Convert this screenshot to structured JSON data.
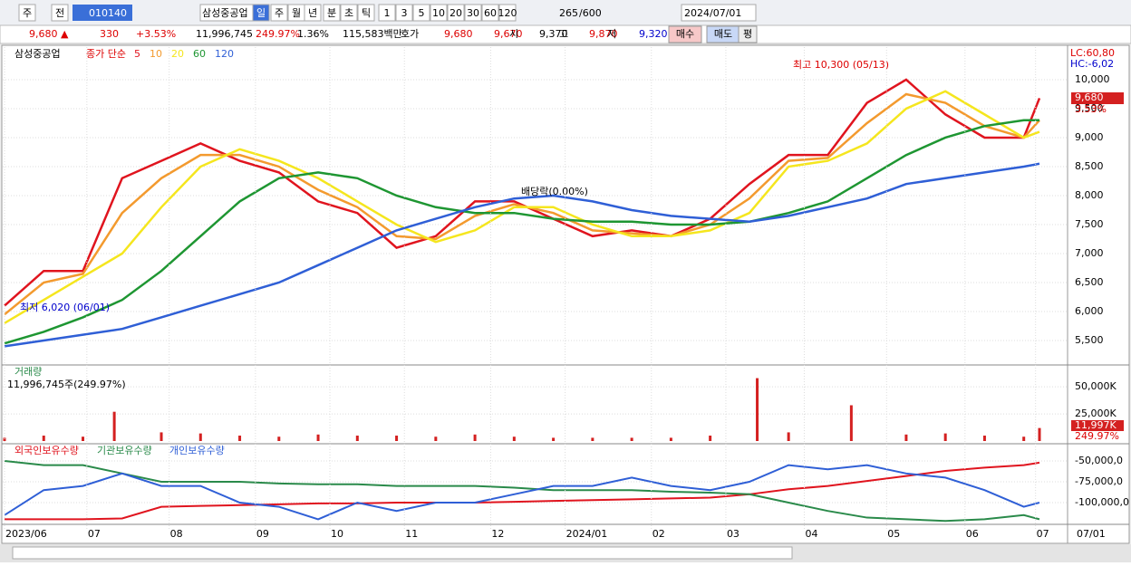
{
  "toolbar": {
    "items": [
      "주",
      "전",
      "010140",
      "삼성중공업",
      "일",
      "주",
      "월",
      "년",
      "분",
      "초",
      "틱",
      "1",
      "3",
      "5",
      "10",
      "20",
      "30",
      "60",
      "120"
    ],
    "count": "265",
    "total": "/600",
    "date": "2024/07/01"
  },
  "quote": {
    "items": [
      "9,680 ▲",
      "330",
      "+3.53%",
      "11,996,745",
      "249.97%",
      "1.36%",
      "115,583백만",
      "호가",
      "9,680",
      "9,670",
      "시",
      "9,370",
      "고",
      "9,870",
      "저",
      "9,320"
    ],
    "buttons": [
      "매수",
      "매도",
      "평"
    ]
  },
  "chart_data": [
    {
      "type": "line",
      "title": "삼성중공업",
      "legend": "종가 단순",
      "lc": "LC:60,80",
      "hc": "HC:-6,02",
      "last_price": "9,680",
      "last_change": "3.53%",
      "x": [
        0,
        10,
        20,
        30,
        40,
        50,
        60,
        70,
        80,
        90,
        100,
        110,
        120,
        130,
        140,
        150,
        160,
        170,
        180,
        190,
        200,
        210,
        220,
        230,
        240,
        250,
        260,
        264
      ],
      "series": [
        {
          "name": "5",
          "color": "#e0141e",
          "values": [
            6100,
            6700,
            6700,
            8300,
            8600,
            8900,
            8600,
            8400,
            7900,
            7700,
            7100,
            7300,
            7900,
            7900,
            7600,
            7300,
            7400,
            7300,
            7600,
            8200,
            8700,
            8700,
            9600,
            10000,
            9400,
            9000,
            9000,
            9680
          ]
        },
        {
          "name": "10",
          "color": "#f39a2e",
          "values": [
            5950,
            6500,
            6650,
            7700,
            8300,
            8700,
            8700,
            8500,
            8100,
            7800,
            7300,
            7250,
            7650,
            7850,
            7700,
            7400,
            7350,
            7300,
            7500,
            7950,
            8600,
            8650,
            9250,
            9750,
            9600,
            9200,
            9000,
            9300
          ]
        },
        {
          "name": "20",
          "color": "#f5e61e",
          "values": [
            5800,
            6200,
            6600,
            7000,
            7800,
            8500,
            8800,
            8600,
            8300,
            7900,
            7500,
            7200,
            7400,
            7800,
            7800,
            7500,
            7300,
            7300,
            7400,
            7700,
            8500,
            8600,
            8900,
            9500,
            9800,
            9400,
            9000,
            9100
          ]
        },
        {
          "name": "60",
          "color": "#1e9632",
          "values": [
            5450,
            5650,
            5900,
            6200,
            6700,
            7300,
            7900,
            8300,
            8400,
            8300,
            8000,
            7800,
            7700,
            7700,
            7600,
            7550,
            7550,
            7500,
            7500,
            7550,
            7700,
            7900,
            8300,
            8700,
            9000,
            9200,
            9300,
            9300
          ]
        },
        {
          "name": "120",
          "color": "#2f5fd6",
          "values": [
            5400,
            5500,
            5600,
            5700,
            5900,
            6100,
            6300,
            6500,
            6800,
            7100,
            7400,
            7600,
            7800,
            7950,
            8000,
            7900,
            7750,
            7650,
            7600,
            7550,
            7650,
            7800,
            7950,
            8200,
            8300,
            8400,
            8500,
            8550
          ]
        }
      ],
      "ylim": [
        5094,
        10562
      ],
      "yticks": [
        {
          "value": 5500,
          "label": "5,500"
        },
        {
          "value": 6000,
          "label": "6,000"
        },
        {
          "value": 6500,
          "label": "6,500"
        },
        {
          "value": 7000,
          "label": "7,000"
        },
        {
          "value": 7500,
          "label": "7,500"
        },
        {
          "value": 8000,
          "label": "8,000"
        },
        {
          "value": 8500,
          "label": "8,500"
        },
        {
          "value": 9000,
          "label": "9,000"
        },
        {
          "value": 9500,
          "label": "9,500"
        },
        {
          "value": 10000,
          "label": "10,000"
        }
      ],
      "annotations": [
        "최고 10,300 (05/13)",
        "최저 6,020 (06/01)",
        "배당락(0.00%)"
      ]
    },
    {
      "type": "bar",
      "title": "거래량",
      "subtitle": "11,996,745주(249.97%)",
      "last_volume": "11,997K",
      "last_ratio": "249.97%",
      "x": [
        0,
        10,
        20,
        28,
        40,
        50,
        60,
        70,
        80,
        90,
        100,
        110,
        120,
        130,
        140,
        150,
        160,
        170,
        180,
        192,
        200,
        216,
        230,
        240,
        250,
        260,
        264
      ],
      "series": [
        {
          "name": "거래량",
          "color": "#d42020",
          "values": [
            3000,
            5000,
            4000,
            27000,
            8000,
            7000,
            5000,
            4000,
            6000,
            5000,
            5000,
            4000,
            6000,
            4000,
            3000,
            3000,
            3000,
            3000,
            5000,
            58000,
            8000,
            33000,
            6000,
            7000,
            5000,
            4000,
            11997
          ]
        }
      ],
      "ylim": [
        0,
        66000
      ],
      "yticks": [
        {
          "value": 25000,
          "label": "25,000K"
        },
        {
          "value": 50000,
          "label": "50,000K"
        }
      ]
    },
    {
      "type": "line",
      "x": [
        0,
        10,
        20,
        30,
        40,
        50,
        60,
        70,
        80,
        90,
        100,
        110,
        120,
        130,
        140,
        150,
        160,
        170,
        180,
        190,
        200,
        210,
        220,
        230,
        240,
        250,
        260,
        264
      ],
      "series": [
        {
          "name": "외국인보유수량",
          "color": "#e0141e",
          "values": [
            -120000000,
            -120000000,
            -120000000,
            -119000000,
            -105000000,
            -104000000,
            -103000000,
            -102000000,
            -101000000,
            -101000000,
            -100000000,
            -100000000,
            -100000000,
            -99000000,
            -98000000,
            -97000000,
            -96000000,
            -95000000,
            -94000000,
            -90000000,
            -84000000,
            -80000000,
            -74000000,
            -68000000,
            -62000000,
            -58000000,
            -55000000,
            -52000000
          ]
        },
        {
          "name": "기관보유수량",
          "color": "#2a8a4a",
          "values": [
            -50000000,
            -55000000,
            -55000000,
            -65000000,
            -75000000,
            -75000000,
            -75000000,
            -77000000,
            -78000000,
            -78000000,
            -80000000,
            -80000000,
            -80000000,
            -82000000,
            -85000000,
            -85000000,
            -85000000,
            -87000000,
            -88000000,
            -90000000,
            -100000000,
            -110000000,
            -118000000,
            -120000000,
            -122000000,
            -120000000,
            -115000000,
            -120000000
          ]
        },
        {
          "name": "개인보유수량",
          "color": "#2f5fd6",
          "values": [
            -115000000,
            -85000000,
            -80000000,
            -65000000,
            -80000000,
            -80000000,
            -100000000,
            -105000000,
            -120000000,
            -100000000,
            -110000000,
            -100000000,
            -100000000,
            -90000000,
            -80000000,
            -80000000,
            -70000000,
            -80000000,
            -85000000,
            -75000000,
            -55000000,
            -60000000,
            -55000000,
            -65000000,
            -70000000,
            -85000000,
            -105000000,
            -100000000
          ]
        }
      ],
      "ylim": [
        -125000000,
        -31500000
      ],
      "yticks": [
        {
          "value": -50000000,
          "label": "-50,000,0"
        },
        {
          "value": -75000000,
          "label": "-75,000,0"
        },
        {
          "value": -100000000,
          "label": "-100,000,0"
        }
      ],
      "xticks": [
        {
          "value": 0,
          "label": "2023/06"
        },
        {
          "value": 21,
          "label": "07"
        },
        {
          "value": 42,
          "label": "08"
        },
        {
          "value": 64,
          "label": "09"
        },
        {
          "value": 83,
          "label": "10"
        },
        {
          "value": 102,
          "label": "11"
        },
        {
          "value": 124,
          "label": "12"
        },
        {
          "value": 143,
          "label": "2024/01"
        },
        {
          "value": 165,
          "label": "02"
        },
        {
          "value": 184,
          "label": "03"
        },
        {
          "value": 204,
          "label": "04"
        },
        {
          "value": 225,
          "label": "05"
        },
        {
          "value": 245,
          "label": "06"
        },
        {
          "value": 263,
          "label": "07"
        }
      ],
      "x_end_label": "07/01"
    }
  ]
}
